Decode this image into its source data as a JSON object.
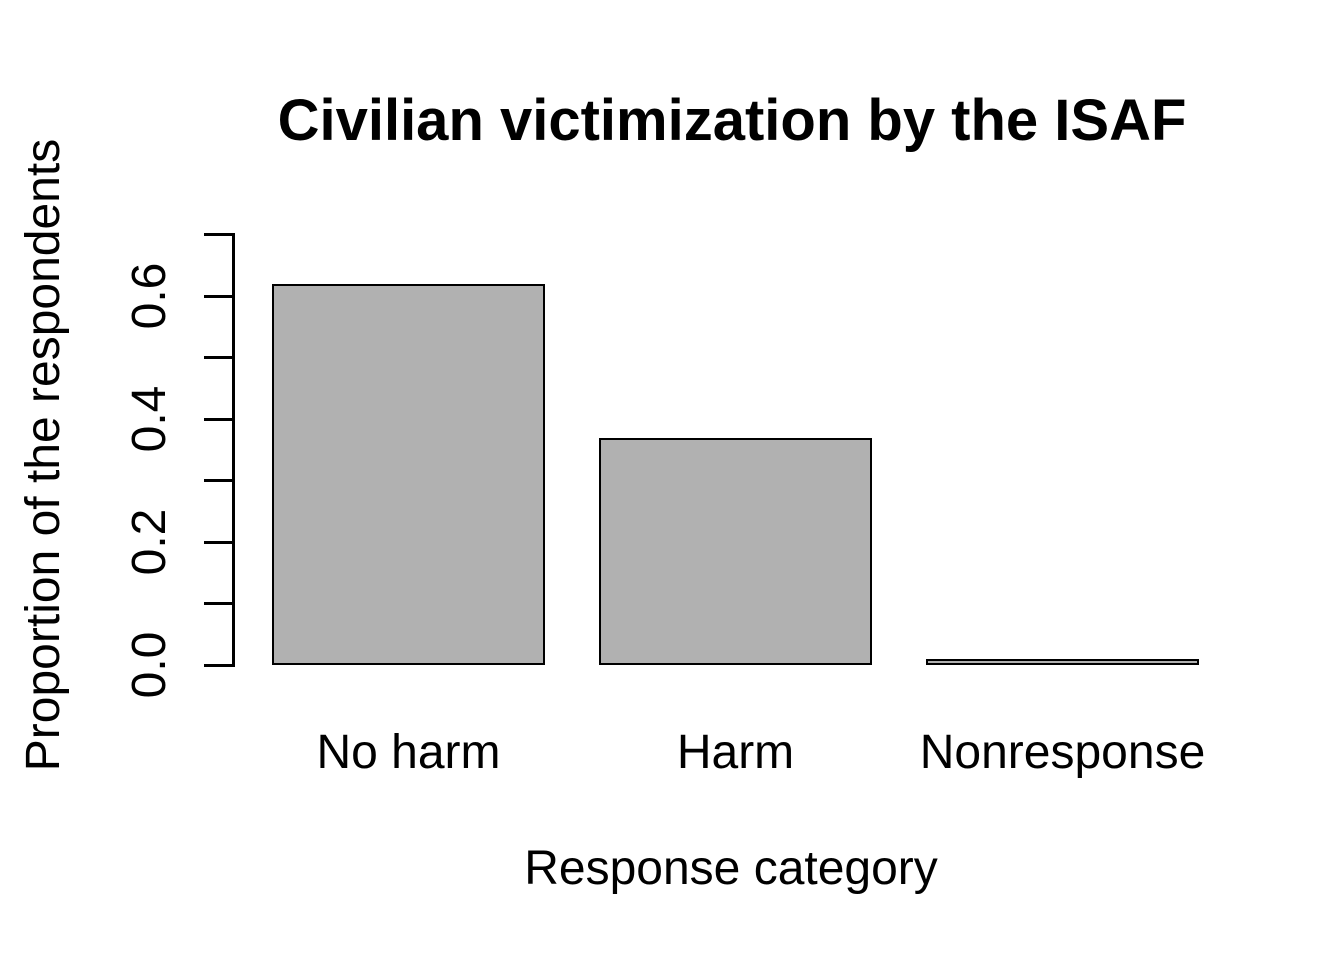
{
  "chart_data": {
    "type": "bar",
    "title": "Civilian victimization by the ISAF",
    "xlabel": "Response category",
    "ylabel": "Proportion of the respondents",
    "categories": [
      "No harm",
      "Harm",
      "Nonresponse"
    ],
    "values": [
      0.62,
      0.37,
      0.01
    ],
    "ylim": [
      0,
      0.7
    ],
    "yticks": [
      0,
      0.1,
      0.2,
      0.3,
      0.4,
      0.5,
      0.6,
      0.7
    ],
    "ytick_labels": [
      "0.0",
      "0.2",
      "0.4",
      "0.6"
    ],
    "ytick_label_values": [
      0,
      0.2,
      0.4,
      0.6
    ],
    "grid": false,
    "legend": null,
    "bar_fill": "#b1b1b1",
    "bar_border": "#000000",
    "axis_color": "#000000",
    "background": "#ffffff"
  }
}
